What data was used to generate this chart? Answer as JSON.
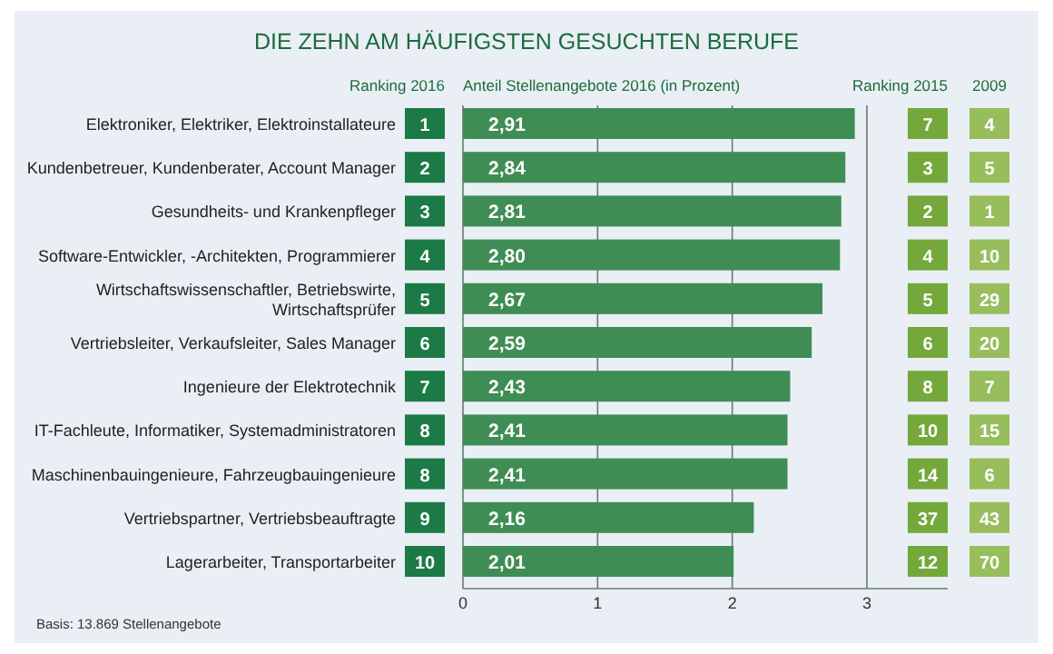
{
  "chart_data": [
    {
      "type": "other",
      "title": "Ranking 2016",
      "values": [
        1,
        2,
        3,
        4,
        5,
        6,
        7,
        8,
        8,
        9,
        10
      ],
      "color": "#1b7a46",
      "data_labels": true
    },
    {
      "type": "bar",
      "orientation": "horizontal",
      "title": "DIE ZEHN AM HÄUFIGSTEN GESUCHTEN BERUFE",
      "xlabel": "Anteil Stellenangebote 2016 (in Prozent)",
      "categories": [
        "Elektroniker, Elektriker, Elektroinstallateure",
        "Kundenbetreuer, Kundenberater, Account Manager",
        "Gesundheits- und Krankenpfleger",
        "Software-Entwickler, -Architekten, Programmierer",
        "Wirtschaftswissenschaftler, Betriebswirte, Wirtschaftsprüfer",
        "Vertriebsleiter, Verkaufsleiter, Sales Manager",
        "Ingenieure der Elektrotechnik",
        "IT-Fachleute, Informatiker, Systemadministratoren",
        "Maschinenbauingenieure, Fahrzeugbauingenieure",
        "Vertriebspartner, Vertriebsbeauftragte",
        "Lagerarbeiter, Transportarbeiter"
      ],
      "values": [
        2.91,
        2.84,
        2.81,
        2.8,
        2.67,
        2.59,
        2.43,
        2.41,
        2.41,
        2.16,
        2.01
      ],
      "value_labels": [
        "2,91",
        "2,84",
        "2,81",
        "2,80",
        "2,67",
        "2,59",
        "2,43",
        "2,41",
        "2,41",
        "2,16",
        "2,01"
      ],
      "color": "#3f8d55",
      "xlim": [
        0,
        3.6
      ],
      "xticks": [
        0,
        1,
        2,
        3
      ],
      "grid": "x",
      "annotations": [
        "Basis: 13.869 Stellenangebote"
      ]
    },
    {
      "type": "other",
      "title": "Ranking 2015",
      "values": [
        7,
        3,
        2,
        4,
        5,
        6,
        8,
        10,
        14,
        37,
        12
      ],
      "color": "#74a83a",
      "data_labels": true
    },
    {
      "type": "other",
      "title": "2009",
      "values": [
        4,
        5,
        1,
        10,
        29,
        20,
        7,
        15,
        6,
        43,
        70
      ],
      "color": "#98bd5c",
      "data_labels": true
    }
  ]
}
